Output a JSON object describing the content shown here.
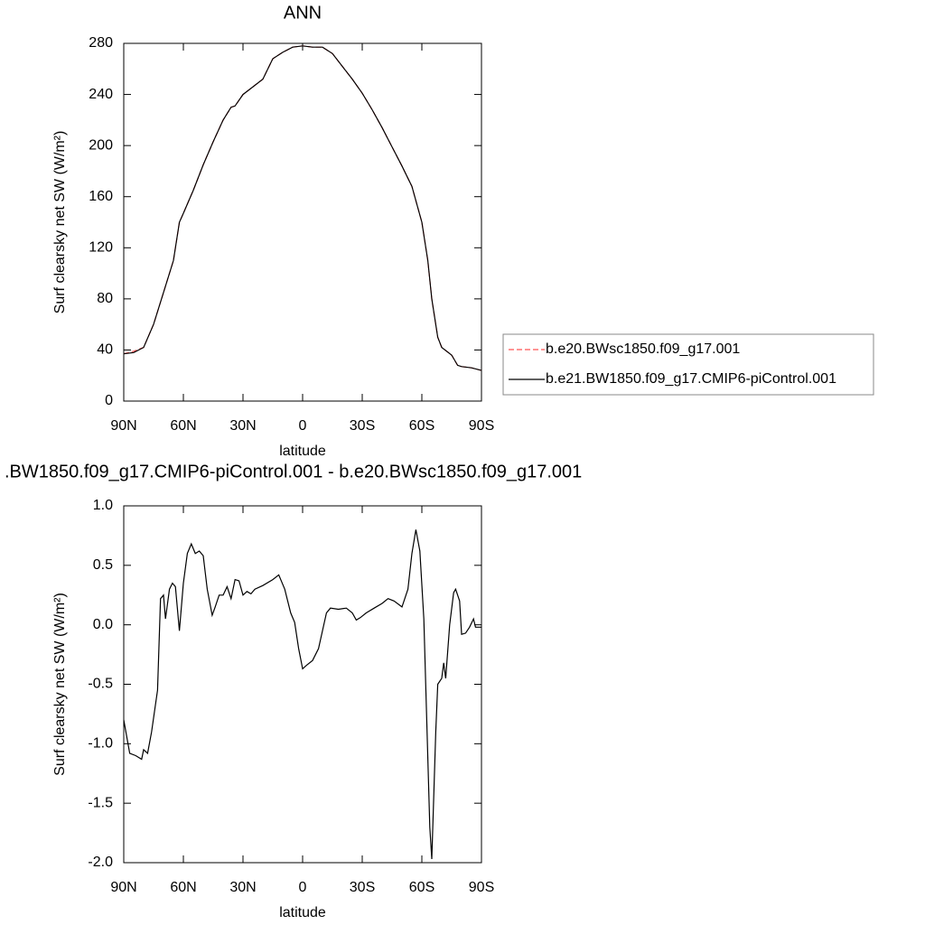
{
  "chart_data": [
    {
      "type": "line",
      "title": "ANN",
      "xlabel": "latitude",
      "ylabel": "Surf clearsky net SW (W/m²)",
      "x": [
        90,
        85,
        80,
        75,
        70,
        65,
        62,
        60,
        55,
        50,
        45,
        40,
        36,
        34,
        30,
        25,
        20,
        15,
        10,
        5,
        0,
        -5,
        -10,
        -15,
        -20,
        -25,
        -30,
        -35,
        -40,
        -45,
        -50,
        -55,
        -60,
        -63,
        -65,
        -68,
        -70,
        -75,
        -78,
        -80,
        -85,
        -90
      ],
      "series": [
        {
          "name": "b.e20.BWsc1850.f09_g17.001",
          "color": "#ff5555",
          "dash": true,
          "values": [
            37,
            39,
            42,
            60,
            85,
            110,
            140,
            147,
            165,
            185,
            203,
            220,
            230,
            231,
            240,
            246,
            252,
            268,
            273,
            277,
            278,
            277,
            277,
            272,
            262,
            252,
            241,
            228,
            214,
            199,
            184,
            168,
            140,
            110,
            80,
            50,
            42,
            36,
            28,
            27,
            26,
            24
          ]
        },
        {
          "name": "b.e21.BW1850.f09_g17.CMIP6-piControl.001",
          "color": "#000000",
          "dash": false,
          "values": [
            37,
            38,
            42,
            60,
            85,
            110,
            140,
            147,
            165,
            185,
            203,
            220,
            230,
            231,
            240,
            246,
            252,
            268,
            273,
            277,
            278,
            277,
            277,
            272,
            262,
            252,
            241,
            228,
            214,
            199,
            184,
            168,
            140,
            110,
            80,
            50,
            42,
            36,
            28,
            27,
            26,
            24
          ]
        }
      ],
      "xlim": [
        90,
        -90
      ],
      "xticks": [
        {
          "value": 90,
          "label": "90N"
        },
        {
          "value": 60,
          "label": "60N"
        },
        {
          "value": 30,
          "label": "30N"
        },
        0,
        {
          "value": -30,
          "label": "30S"
        },
        {
          "value": -60,
          "label": "60S"
        },
        {
          "value": -90,
          "label": "90S"
        }
      ],
      "ylim": [
        0,
        280
      ],
      "yticks": [
        0,
        40,
        80,
        120,
        160,
        200,
        240,
        280
      ],
      "legend": "right"
    },
    {
      "type": "line",
      "title": ".BW1850.f09_g17.CMIP6-piControl.001 - b.e20.BWsc1850.f09_g17.001",
      "xlabel": "latitude",
      "ylabel": "Surf clearsky net SW (W/m²)",
      "x": [
        90,
        87,
        84,
        81,
        80,
        78,
        76,
        73,
        71.5,
        70,
        69,
        67,
        65.5,
        64,
        62,
        60,
        58,
        56,
        54,
        52,
        50,
        48,
        45.5,
        44,
        42,
        40,
        38,
        36,
        34,
        32,
        30,
        28,
        26,
        24,
        20,
        15,
        12,
        9,
        6,
        4,
        2,
        0,
        -2,
        -5,
        -8,
        -10,
        -12,
        -14,
        -18,
        -22,
        -25,
        -27,
        -29,
        -32,
        -36,
        -40,
        -43,
        -46,
        -50,
        -53,
        -55,
        -57,
        -59,
        -61,
        -64,
        -65,
        -67,
        -68,
        -70,
        -71,
        -72,
        -74,
        -76,
        -77,
        -79,
        -80,
        -82,
        -84,
        -86,
        -87,
        -90
      ],
      "series": [
        {
          "color": "#000000",
          "dash": false,
          "values": [
            -0.8,
            -1.08,
            -1.1,
            -1.13,
            -1.05,
            -1.08,
            -0.9,
            -0.55,
            0.22,
            0.25,
            0.05,
            0.3,
            0.35,
            0.32,
            -0.05,
            0.35,
            0.6,
            0.68,
            0.6,
            0.62,
            0.58,
            0.3,
            0.08,
            0.15,
            0.25,
            0.25,
            0.32,
            0.22,
            0.38,
            0.37,
            0.25,
            0.28,
            0.26,
            0.3,
            0.33,
            0.38,
            0.42,
            0.3,
            0.1,
            0.02,
            -0.2,
            -0.37,
            -0.34,
            -0.3,
            -0.2,
            -0.05,
            0.1,
            0.14,
            0.13,
            0.14,
            0.1,
            0.04,
            0.06,
            0.1,
            0.14,
            0.18,
            0.22,
            0.2,
            0.15,
            0.3,
            0.6,
            0.8,
            0.62,
            0.05,
            -1.7,
            -1.97,
            -0.9,
            -0.5,
            -0.45,
            -0.32,
            -0.45,
            0.0,
            0.27,
            0.3,
            0.2,
            -0.08,
            -0.07,
            -0.02,
            0.05,
            -0.02,
            -0.02
          ]
        }
      ],
      "xlim": [
        90,
        -90
      ],
      "xticks": [
        {
          "value": 90,
          "label": "90N"
        },
        {
          "value": 60,
          "label": "60N"
        },
        {
          "value": 30,
          "label": "30N"
        },
        0,
        {
          "value": -30,
          "label": "30S"
        },
        {
          "value": -60,
          "label": "60S"
        },
        {
          "value": -90,
          "label": "90S"
        }
      ],
      "ylim": [
        -2.0,
        1.0
      ],
      "yticks": [
        {
          "value": -2.0,
          "label": "-2.0"
        },
        {
          "value": -1.5,
          "label": "-1.5"
        },
        {
          "value": -1.0,
          "label": "-1.0"
        },
        {
          "value": -0.5,
          "label": "-0.5"
        },
        {
          "value": 0,
          "label": "0.0"
        },
        {
          "value": 0.5,
          "label": "0.5"
        },
        {
          "value": 1.0,
          "label": "1.0"
        }
      ]
    }
  ]
}
